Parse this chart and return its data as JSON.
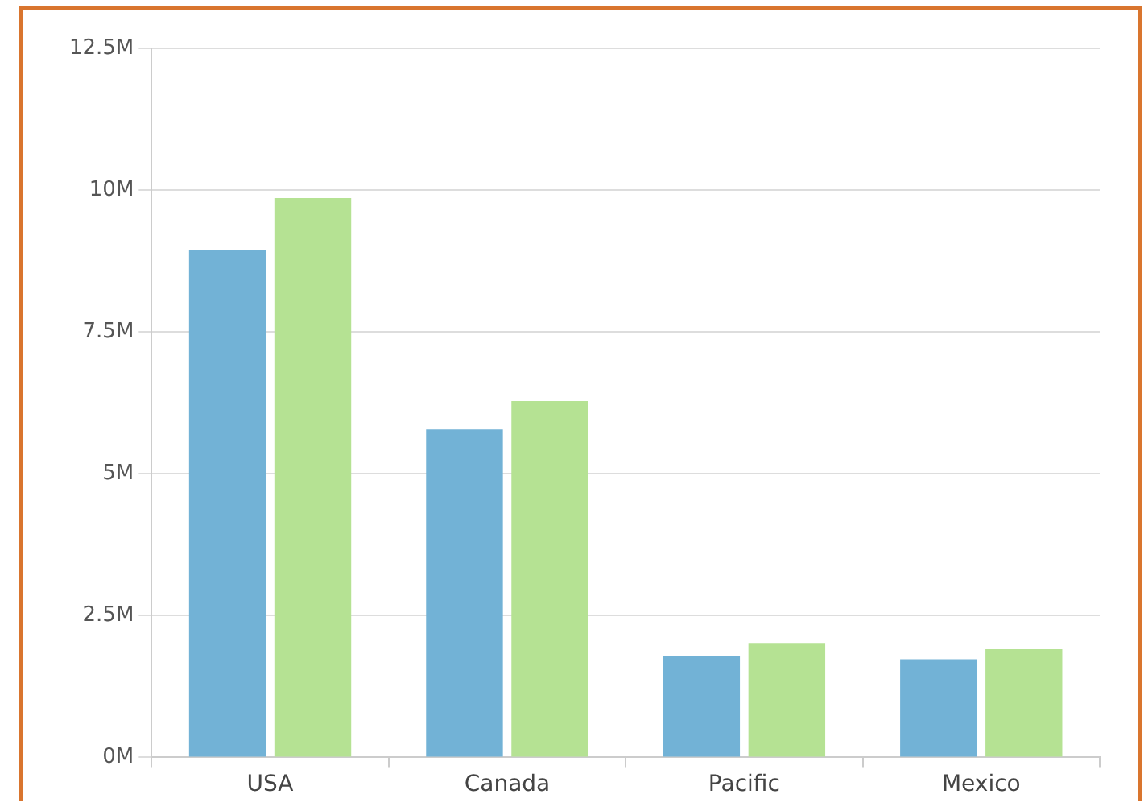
{
  "chart_data": {
    "type": "bar",
    "categories": [
      "USA",
      "Canada",
      "Pacific",
      "Mexico"
    ],
    "series": [
      {
        "color": "#72b2d6",
        "values": [
          8.95,
          5.78,
          1.79,
          1.73
        ]
      },
      {
        "color": "#b5e293",
        "values": [
          9.86,
          6.28,
          2.02,
          1.91
        ]
      }
    ],
    "ylim": [
      0,
      12.5
    ],
    "yticks": [
      {
        "value": 0,
        "label": "0M"
      },
      {
        "value": 2.5,
        "label": "2.5M"
      },
      {
        "value": 5,
        "label": "5M"
      },
      {
        "value": 7.5,
        "label": "7.5M"
      },
      {
        "value": 10,
        "label": "10M"
      },
      {
        "value": 12.5,
        "label": "12.5M"
      }
    ],
    "grid": "y",
    "legend": false
  }
}
